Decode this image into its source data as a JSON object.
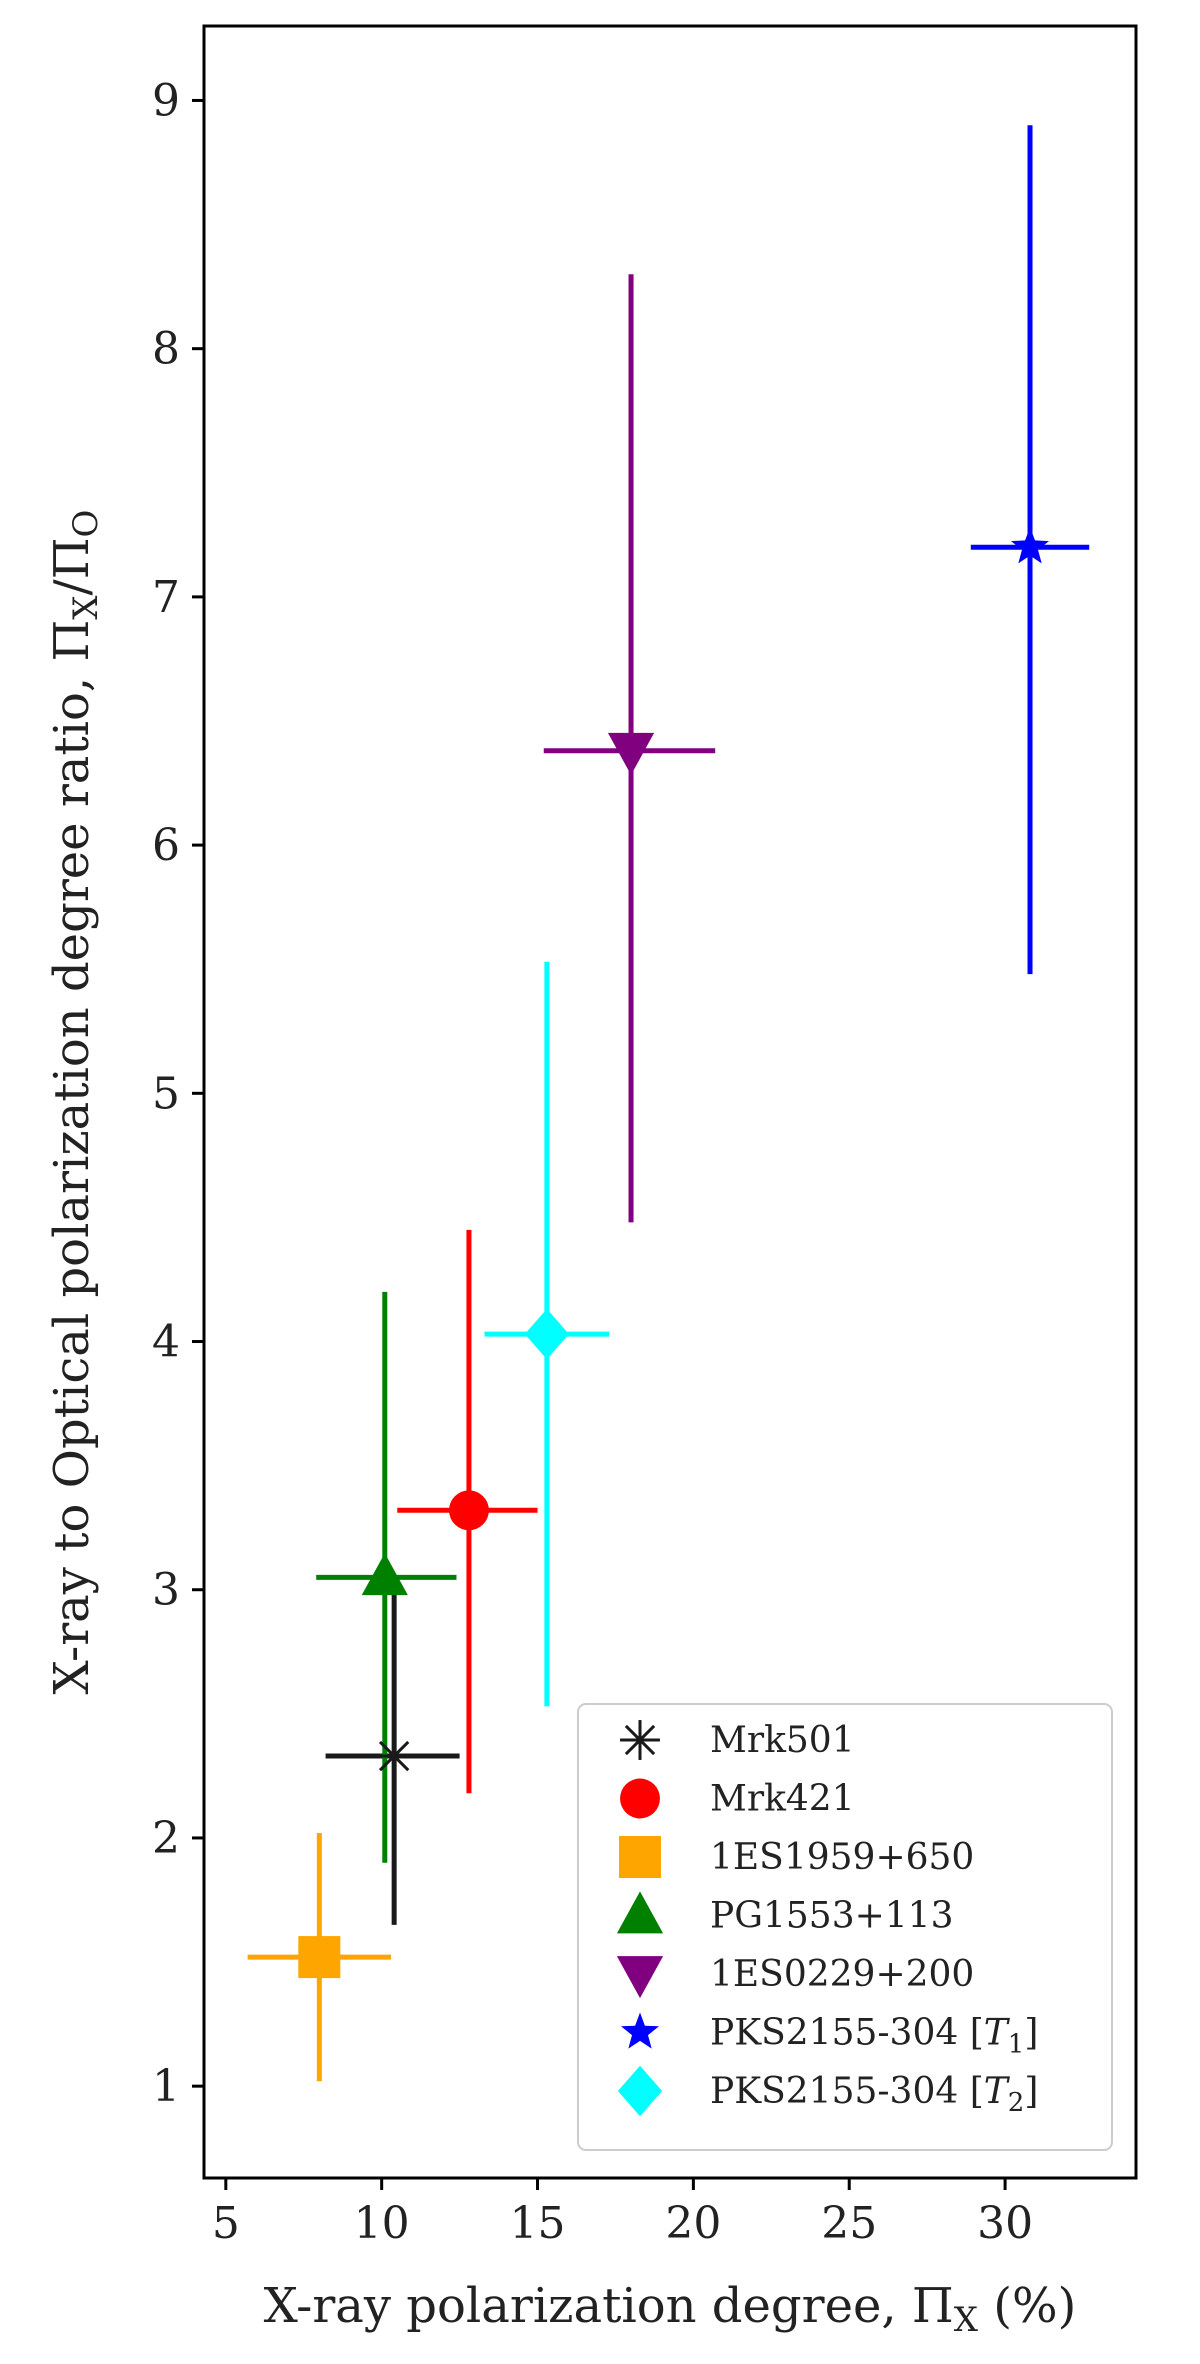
{
  "chart_data": {
    "type": "scatter",
    "title": "",
    "xlabel": "X-ray polarization degree, Π",
    "xlabel_sub": "X",
    "xlabel_tail": " (%)",
    "ylabel": "X-ray to Optical polarization degree ratio, Π",
    "ylabel_sub1": "X",
    "ylabel_mid": "/Π",
    "ylabel_sub2": "O",
    "xlim": [
      4.3,
      34.2
    ],
    "ylim": [
      0.63,
      9.3
    ],
    "xticks": [
      5,
      10,
      15,
      20,
      25,
      30
    ],
    "yticks": [
      1,
      2,
      3,
      4,
      5,
      6,
      7,
      8,
      9
    ],
    "xtick_labels": [
      "5",
      "10",
      "15",
      "20",
      "25",
      "30"
    ],
    "ytick_labels": [
      "1",
      "2",
      "3",
      "4",
      "5",
      "6",
      "7",
      "8",
      "9"
    ],
    "grid": false,
    "legend_position": "bottom-right",
    "series": [
      {
        "name": "Mrk501",
        "marker": "asterisk",
        "color": "#1a1a1a",
        "x": 10.4,
        "y": 2.33,
        "xerr": [
          8.2,
          12.5
        ],
        "yerr": [
          1.65,
          3.0
        ]
      },
      {
        "name": "Mrk421",
        "marker": "circle",
        "color": "#ff0000",
        "x": 12.8,
        "y": 3.32,
        "xerr": [
          10.5,
          15.0
        ],
        "yerr": [
          2.18,
          4.45
        ]
      },
      {
        "name": "1ES1959+650",
        "marker": "square",
        "color": "#ffa500",
        "x": 8.0,
        "y": 1.52,
        "xerr": [
          5.7,
          10.3
        ],
        "yerr": [
          1.02,
          2.02
        ]
      },
      {
        "name": "PG1553+113",
        "marker": "triangle-up",
        "color": "#008000",
        "x": 10.1,
        "y": 3.05,
        "xerr": [
          7.9,
          12.4
        ],
        "yerr": [
          1.9,
          4.2
        ]
      },
      {
        "name": "1ES0229+200",
        "marker": "triangle-down",
        "color": "#800080",
        "x": 18.0,
        "y": 6.38,
        "xerr": [
          15.2,
          20.7
        ],
        "yerr": [
          4.48,
          8.3
        ]
      },
      {
        "name": "PKS2155-304 [",
        "name_math": "T",
        "name_sub": "1",
        "name_tail": "]",
        "marker": "star",
        "color": "#0000ff",
        "x": 30.8,
        "y": 7.2,
        "xerr": [
          28.9,
          32.7
        ],
        "yerr": [
          5.48,
          8.9
        ]
      },
      {
        "name": "PKS2155-304 [",
        "name_math": "T",
        "name_sub": "2",
        "name_tail": "]",
        "marker": "diamond",
        "color": "#00ffff",
        "x": 15.3,
        "y": 4.03,
        "xerr": [
          13.3,
          17.3
        ],
        "yerr": [
          2.53,
          5.53
        ]
      }
    ]
  }
}
